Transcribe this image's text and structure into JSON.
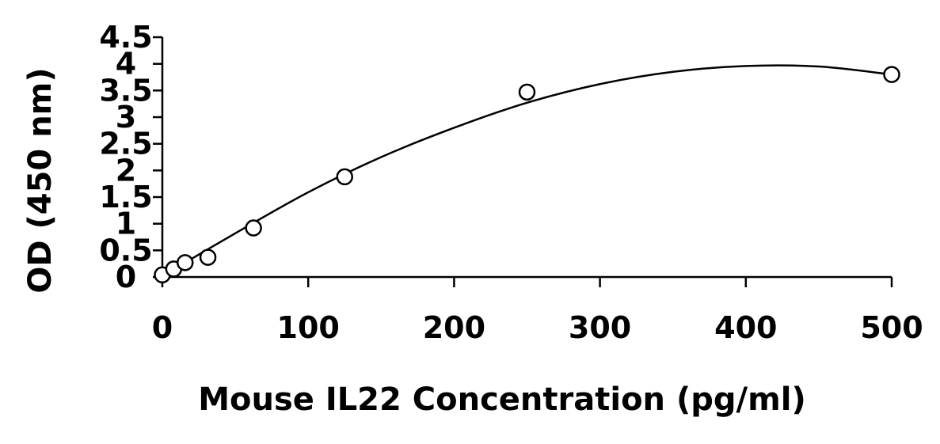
{
  "chart_data": {
    "type": "scatter",
    "xlabel": "Mouse IL22 Concentration (pg/ml)",
    "ylabel": "OD (450 nm)",
    "xlim": [
      0,
      500
    ],
    "ylim": [
      0,
      4.5
    ],
    "xticks": [
      0,
      100,
      200,
      300,
      400,
      500
    ],
    "yticks": [
      0,
      0.5,
      1,
      1.5,
      2,
      2.5,
      3,
      3.5,
      4,
      4.5
    ],
    "xtick_labels": [
      "0",
      "100",
      "200",
      "300",
      "400",
      "500"
    ],
    "ytick_labels": [
      "0",
      "0.5",
      "1",
      "1.5",
      "2",
      "2.5",
      "3",
      "3.5",
      "4",
      "4.5"
    ],
    "grid": false,
    "legend": "none",
    "series": [
      {
        "marker": "open-circle",
        "x": [
          0,
          7.8,
          15.6,
          31.25,
          62.5,
          125,
          250,
          500
        ],
        "y": [
          0.04,
          0.15,
          0.27,
          0.37,
          0.92,
          1.88,
          3.47,
          3.8
        ]
      }
    ],
    "fit_curve": {
      "type": "polynomial-2",
      "x": [
        0,
        50,
        100,
        150,
        200,
        250,
        300,
        350,
        400,
        450,
        500
      ],
      "y": [
        0.02,
        0.82,
        1.59,
        2.25,
        2.8,
        3.27,
        3.62,
        3.85,
        3.96,
        3.95,
        3.8
      ]
    },
    "colors": {
      "axis": "#000000",
      "marker_stroke": "#000000",
      "marker_fill": "#ffffff",
      "curve": "#000000"
    }
  }
}
